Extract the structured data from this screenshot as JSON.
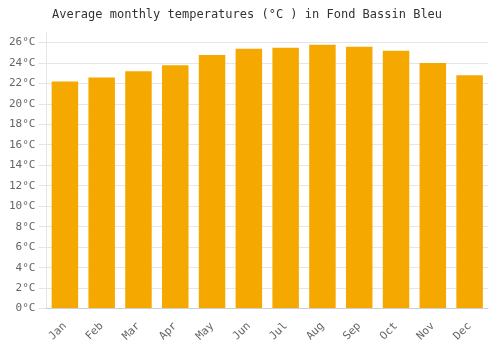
{
  "chart_data": {
    "type": "bar",
    "title": "Average monthly temperatures (°C ) in Fond Bassin Bleu",
    "categories": [
      "Jan",
      "Feb",
      "Mar",
      "Apr",
      "May",
      "Jun",
      "Jul",
      "Aug",
      "Sep",
      "Oct",
      "Nov",
      "Dec"
    ],
    "values": [
      22.2,
      22.6,
      23.2,
      23.8,
      24.8,
      25.4,
      25.5,
      25.8,
      25.6,
      25.2,
      24.0,
      22.8
    ],
    "color": "#F5A800",
    "ylim": [
      0,
      27
    ],
    "yticks": [
      {
        "value": 0,
        "label": "0°C"
      },
      {
        "value": 2,
        "label": "2°C"
      },
      {
        "value": 4,
        "label": "4°C"
      },
      {
        "value": 6,
        "label": "6°C"
      },
      {
        "value": 8,
        "label": "8°C"
      },
      {
        "value": 10,
        "label": "10°C"
      },
      {
        "value": 12,
        "label": "12°C"
      },
      {
        "value": 14,
        "label": "14°C"
      },
      {
        "value": 16,
        "label": "16°C"
      },
      {
        "value": 18,
        "label": "18°C"
      },
      {
        "value": 20,
        "label": "20°C"
      },
      {
        "value": 22,
        "label": "22°C"
      },
      {
        "value": 24,
        "label": "24°C"
      },
      {
        "value": 26,
        "label": "26°C"
      }
    ],
    "grid": true
  }
}
